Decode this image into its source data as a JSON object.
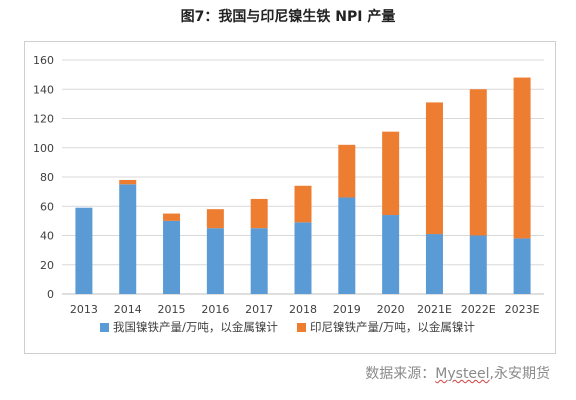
{
  "title": "图7：我国与印尼镍生铁 NPI 产量",
  "source_prefix": "数据来源：",
  "source_mysteel": "Mysteel",
  "source_suffix": ",永安期货",
  "colors": {
    "china": "#5b9bd5",
    "indonesia": "#ed7d31",
    "grid": "#d9d9d9",
    "axis_text": "#404040"
  },
  "chart_data": {
    "type": "bar",
    "stacked": true,
    "categories": [
      "2013",
      "2014",
      "2015",
      "2016",
      "2017",
      "2018",
      "2019",
      "2020",
      "2021E",
      "2022E",
      "2023E"
    ],
    "series": [
      {
        "name": "我国镍铁产量/万吨，以金属镍计",
        "values": [
          59,
          75,
          50,
          45,
          45,
          49,
          66,
          54,
          41,
          40,
          38
        ]
      },
      {
        "name": "印尼镍铁产量/万吨，以金属镍计",
        "values": [
          0,
          3,
          5,
          13,
          20,
          25,
          36,
          57,
          90,
          100,
          110
        ]
      }
    ],
    "ylim": [
      0,
      160
    ],
    "yticks": [
      0,
      20,
      40,
      60,
      80,
      100,
      120,
      140,
      160
    ],
    "grid": true,
    "legend_position": "bottom"
  }
}
